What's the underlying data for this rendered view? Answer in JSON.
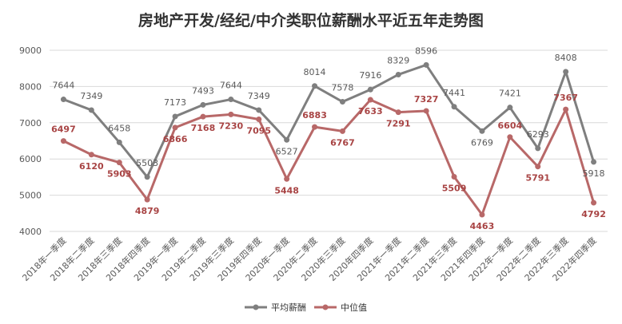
{
  "chart_data": {
    "type": "line",
    "title": "房地产开发/经纪/中介类职位薪酬水平近五年走势图",
    "xlabel": "",
    "ylabel": "",
    "ylim": [
      4000,
      9000
    ],
    "yticks": [
      4000,
      5000,
      6000,
      7000,
      8000,
      9000
    ],
    "grid": true,
    "legend_position": "bottom",
    "categories": [
      "2018年一季度",
      "2018年二季度",
      "2018年三季度",
      "2018年四季度",
      "2019年一季度",
      "2019年二季度",
      "2019年三季度",
      "2019年四季度",
      "2020年一季度",
      "2020年二季度",
      "2020年三季度",
      "2020年四季度",
      "2021年一季度",
      "2021年二季度",
      "2021年三季度",
      "2021年四季度",
      "2022年一季度",
      "2022年二季度",
      "2022年三季度",
      "2022年四季度"
    ],
    "series": [
      {
        "name": "平均薪酬",
        "color": "#7f7f7f",
        "values": [
          7644,
          7349,
          6458,
          5503,
          7173,
          7493,
          7644,
          7349,
          6527,
          8014,
          7578,
          7916,
          8329,
          8596,
          7441,
          6769,
          7421,
          6293,
          8408,
          5918
        ]
      },
      {
        "name": "中位值",
        "color": "#b86868",
        "values": [
          6497,
          6120,
          5903,
          4879,
          6866,
          7168,
          7230,
          7095,
          5448,
          6883,
          6767,
          7633,
          7291,
          7327,
          5509,
          4463,
          6604,
          5791,
          7367,
          4792
        ]
      }
    ]
  }
}
